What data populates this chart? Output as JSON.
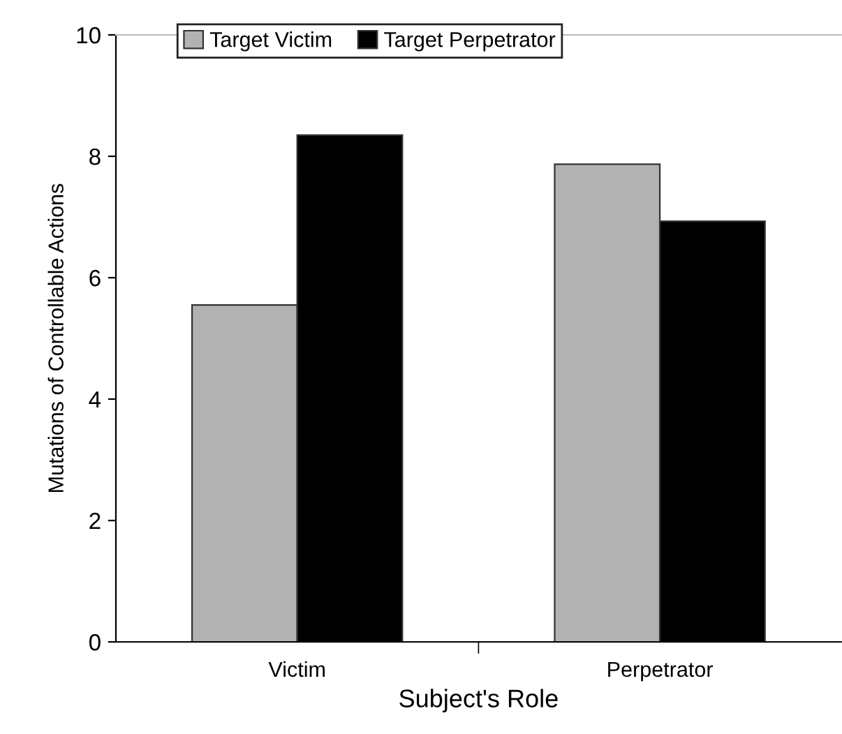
{
  "chart_data": {
    "type": "bar",
    "xlabel": "Subject's Role",
    "ylabel": "Mutations of Controllable Actions",
    "categories": [
      "Victim",
      "Perpetrator"
    ],
    "series": [
      {
        "name": "Target Victim",
        "color": "#b2b2b2",
        "values": [
          5.55,
          7.87
        ]
      },
      {
        "name": "Target Perpetrator",
        "color": "#000000",
        "values": [
          8.35,
          6.93
        ]
      }
    ],
    "ylim": [
      0,
      10
    ],
    "yticks": [
      0,
      2,
      4,
      6,
      8,
      10
    ],
    "legend": "top"
  }
}
